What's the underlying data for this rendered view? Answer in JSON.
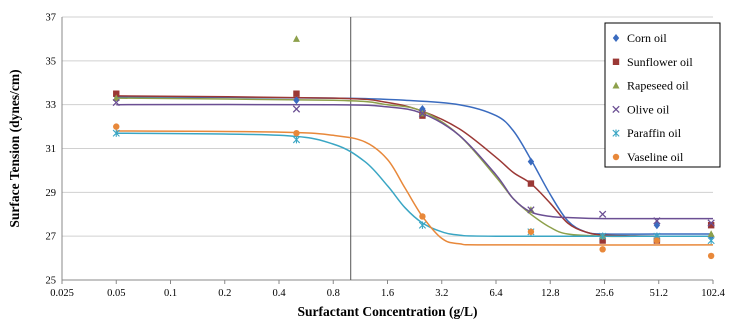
{
  "chart_data": {
    "type": "scatter",
    "title": "",
    "xlabel": "Surfactant Concentration (g/L)",
    "ylabel": "Surface Tension (dynes/cm)",
    "x_scale": "log2",
    "xlim": [
      0.025,
      102.4
    ],
    "ylim": [
      25,
      37
    ],
    "x_ticks": [
      0.025,
      0.05,
      0.1,
      0.2,
      0.4,
      0.8,
      1.6,
      3.2,
      6.4,
      12.8,
      25.6,
      51.2,
      102.4
    ],
    "x_tick_labels": [
      "0.025",
      "0.05",
      "0.1",
      "0.2",
      "0.4",
      "0.8",
      "1.6",
      "3.2",
      "6.4",
      "12.8",
      "25.6",
      "51.2",
      "102.4"
    ],
    "y_ticks": [
      25,
      27,
      29,
      31,
      33,
      35,
      37
    ],
    "grid": "horizontal",
    "legend_position": "right",
    "reference_line_x": 1.0,
    "series": [
      {
        "name": "Corn oil",
        "color": "#3a6bbf",
        "marker": "diamond",
        "points": [
          [
            0.05,
            33.4
          ],
          [
            0.5,
            33.2
          ],
          [
            2.5,
            32.8
          ],
          [
            10,
            30.4
          ],
          [
            25,
            26.9
          ],
          [
            50,
            27.5
          ],
          [
            100,
            27.0
          ]
        ],
        "fit": [
          [
            0.05,
            33.35
          ],
          [
            0.8,
            33.3
          ],
          [
            2.0,
            33.2
          ],
          [
            4.0,
            33.0
          ],
          [
            6.4,
            32.5
          ],
          [
            8.0,
            31.8
          ],
          [
            10.0,
            30.5
          ],
          [
            12.8,
            28.9
          ],
          [
            16,
            27.7
          ],
          [
            20,
            27.2
          ],
          [
            25.6,
            27.1
          ],
          [
            51.2,
            27.1
          ],
          [
            102.4,
            27.1
          ]
        ]
      },
      {
        "name": "Sunflower oil",
        "color": "#9b3835",
        "marker": "square",
        "points": [
          [
            0.05,
            33.5
          ],
          [
            0.5,
            33.5
          ],
          [
            2.5,
            32.5
          ],
          [
            10,
            29.4
          ],
          [
            25,
            26.8
          ],
          [
            50,
            26.8
          ],
          [
            100,
            27.5
          ]
        ],
        "fit": [
          [
            0.05,
            33.4
          ],
          [
            0.8,
            33.3
          ],
          [
            1.6,
            33.1
          ],
          [
            2.5,
            32.7
          ],
          [
            4.0,
            31.9
          ],
          [
            6.4,
            30.6
          ],
          [
            8.0,
            29.9
          ],
          [
            10.0,
            29.4
          ],
          [
            12.8,
            28.5
          ],
          [
            16,
            27.6
          ],
          [
            20,
            27.2
          ],
          [
            25.6,
            27.05
          ],
          [
            51.2,
            27.0
          ],
          [
            102.4,
            27.0
          ]
        ]
      },
      {
        "name": "Rapeseed oil",
        "color": "#8da04b",
        "marker": "triangle",
        "points": [
          [
            0.05,
            33.3
          ],
          [
            0.5,
            36.0
          ],
          [
            2.5,
            32.6
          ],
          [
            10,
            28.2
          ],
          [
            25,
            27.0
          ],
          [
            50,
            26.9
          ],
          [
            100,
            27.1
          ]
        ],
        "fit": [
          [
            0.05,
            33.3
          ],
          [
            0.8,
            33.2
          ],
          [
            1.6,
            33.0
          ],
          [
            2.5,
            32.7
          ],
          [
            4.0,
            31.6
          ],
          [
            6.4,
            29.7
          ],
          [
            8.0,
            28.7
          ],
          [
            10.0,
            28.0
          ],
          [
            12.8,
            27.4
          ],
          [
            16,
            27.1
          ],
          [
            25.6,
            27.0
          ],
          [
            51.2,
            27.0
          ],
          [
            102.4,
            27.0
          ]
        ]
      },
      {
        "name": "Olive oil",
        "color": "#6b4f93",
        "marker": "x",
        "points": [
          [
            0.05,
            33.1
          ],
          [
            0.5,
            32.8
          ],
          [
            2.5,
            32.6
          ],
          [
            10,
            28.2
          ],
          [
            25,
            28.0
          ],
          [
            50,
            27.7
          ],
          [
            100,
            27.6
          ]
        ],
        "fit": [
          [
            0.05,
            33.0
          ],
          [
            0.8,
            33.0
          ],
          [
            1.6,
            32.9
          ],
          [
            2.5,
            32.6
          ],
          [
            4.0,
            31.6
          ],
          [
            6.4,
            29.8
          ],
          [
            8.0,
            28.7
          ],
          [
            10.0,
            28.1
          ],
          [
            12.8,
            27.9
          ],
          [
            16,
            27.85
          ],
          [
            25.6,
            27.8
          ],
          [
            51.2,
            27.8
          ],
          [
            102.4,
            27.8
          ]
        ]
      },
      {
        "name": "Paraffin oil",
        "color": "#3aa6c4",
        "marker": "star",
        "points": [
          [
            0.05,
            31.7
          ],
          [
            0.5,
            31.4
          ],
          [
            2.5,
            27.5
          ],
          [
            10,
            27.2
          ],
          [
            25,
            27.0
          ],
          [
            50,
            27.0
          ],
          [
            100,
            26.8
          ]
        ],
        "fit": [
          [
            0.05,
            31.7
          ],
          [
            0.4,
            31.6
          ],
          [
            0.8,
            31.2
          ],
          [
            1.2,
            30.4
          ],
          [
            1.6,
            29.3
          ],
          [
            2.0,
            28.3
          ],
          [
            2.5,
            27.6
          ],
          [
            3.2,
            27.2
          ],
          [
            4.0,
            27.05
          ],
          [
            6.4,
            27.0
          ],
          [
            102.4,
            27.0
          ]
        ]
      },
      {
        "name": "Vaseline oil",
        "color": "#e8883a",
        "marker": "circle",
        "points": [
          [
            0.05,
            32.0
          ],
          [
            0.5,
            31.7
          ],
          [
            2.5,
            27.9
          ],
          [
            10,
            27.2
          ],
          [
            25,
            26.4
          ],
          [
            50,
            26.8
          ],
          [
            100,
            26.1
          ]
        ],
        "fit": [
          [
            0.05,
            31.8
          ],
          [
            0.4,
            31.75
          ],
          [
            0.8,
            31.6
          ],
          [
            1.2,
            31.3
          ],
          [
            1.6,
            30.5
          ],
          [
            2.0,
            29.2
          ],
          [
            2.5,
            27.9
          ],
          [
            3.2,
            26.9
          ],
          [
            4.0,
            26.65
          ],
          [
            6.4,
            26.6
          ],
          [
            102.4,
            26.6
          ]
        ]
      }
    ]
  }
}
